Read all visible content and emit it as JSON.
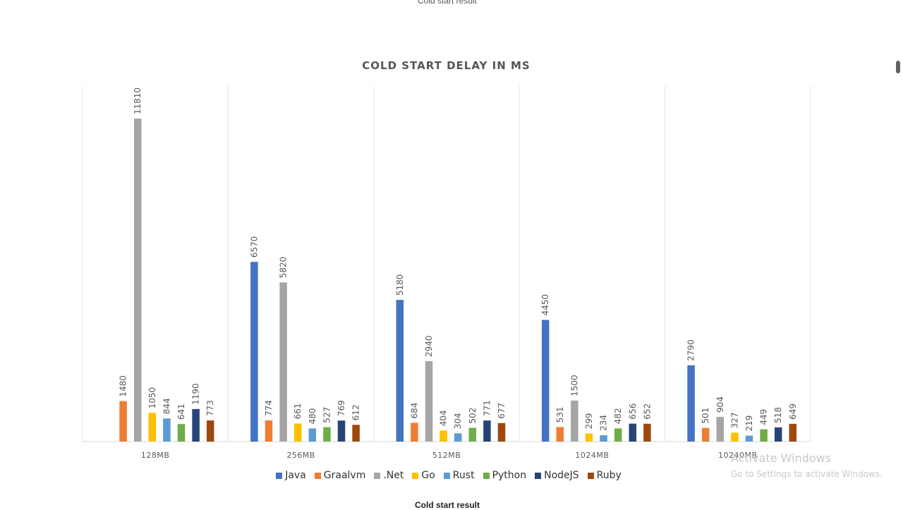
{
  "page": {
    "top_caption": "Cold start result",
    "bottom_caption": "Cold start result"
  },
  "watermark": {
    "title": "Activate Windows",
    "subtitle": "Go to Settings to activate Windows."
  },
  "chart_data": {
    "type": "bar",
    "title": "COLD START DELAY IN MS",
    "xlabel": "",
    "ylabel": "",
    "ylim": [
      0,
      13000
    ],
    "grid": false,
    "legend_position": "bottom",
    "categories": [
      "128MB",
      "256MB",
      "512MB",
      "1024MB",
      "10240MB"
    ],
    "series": [
      {
        "name": "Java",
        "color": "#4472c4",
        "values": [
          null,
          6570,
          5180,
          4450,
          2790
        ]
      },
      {
        "name": "Graalvm",
        "color": "#ed7d31",
        "values": [
          1480,
          774,
          684,
          531,
          501
        ]
      },
      {
        "name": ".Net",
        "color": "#a5a5a5",
        "values": [
          11810,
          5820,
          2940,
          1500,
          904
        ]
      },
      {
        "name": "Go",
        "color": "#ffc000",
        "values": [
          1050,
          661,
          404,
          299,
          327
        ]
      },
      {
        "name": "Rust",
        "color": "#5b9bd5",
        "values": [
          844,
          480,
          304,
          234,
          219
        ]
      },
      {
        "name": "Python",
        "color": "#70ad47",
        "values": [
          641,
          527,
          502,
          482,
          449
        ]
      },
      {
        "name": "NodeJS",
        "color": "#264478",
        "values": [
          1190,
          769,
          771,
          656,
          518
        ]
      },
      {
        "name": "Ruby",
        "color": "#9e480e",
        "values": [
          773,
          612,
          677,
          652,
          649
        ]
      }
    ]
  }
}
